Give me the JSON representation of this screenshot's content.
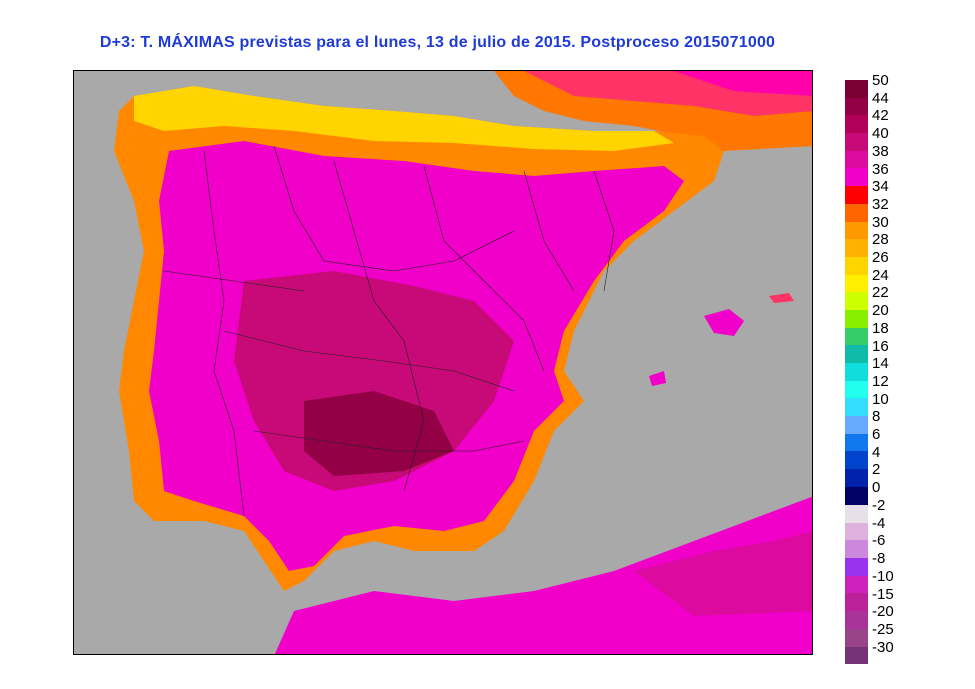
{
  "title": "D+3: T. MÁXIMAS previstas para el lunes, 13 de julio de 2015. Postproceso 2015071000",
  "legend_positive": [
    {
      "label": "50",
      "color": "#7a0034"
    },
    {
      "label": "44",
      "color": "#930045"
    },
    {
      "label": "42",
      "color": "#b0005a"
    },
    {
      "label": "40",
      "color": "#c80a78"
    },
    {
      "label": "38",
      "color": "#dd0aa0"
    },
    {
      "label": "36",
      "color": "#f000c8"
    },
    {
      "label": "34",
      "color": "#ff0000"
    },
    {
      "label": "32",
      "color": "#ff6600"
    },
    {
      "label": "30",
      "color": "#ff9900"
    },
    {
      "label": "28",
      "color": "#ffb000"
    },
    {
      "label": "26",
      "color": "#ffd400"
    },
    {
      "label": "24",
      "color": "#ffee00"
    },
    {
      "label": "22",
      "color": "#ccff00"
    },
    {
      "label": "20",
      "color": "#88ee00"
    },
    {
      "label": "18",
      "color": "#33cc66"
    },
    {
      "label": "16",
      "color": "#11bbaa"
    },
    {
      "label": "14",
      "color": "#11dddd"
    },
    {
      "label": "12",
      "color": "#22ffee"
    },
    {
      "label": "10",
      "color": "#33ddff"
    },
    {
      "label": "8",
      "color": "#66aaff"
    },
    {
      "label": "6",
      "color": "#1177ee"
    },
    {
      "label": "4",
      "color": "#0044cc"
    },
    {
      "label": "2",
      "color": "#0022aa"
    },
    {
      "label": "0",
      "color": "#000066"
    }
  ],
  "legend_negative": [
    {
      "label": "-2",
      "color": "#e8e0e8"
    },
    {
      "label": "-4",
      "color": "#ddb0dd"
    },
    {
      "label": "-6",
      "color": "#cc88dd"
    },
    {
      "label": "-8",
      "color": "#9933ee"
    },
    {
      "label": "-10",
      "color": "#cc22bb"
    },
    {
      "label": "-15",
      "color": "#bb2299"
    },
    {
      "label": "-20",
      "color": "#aa3399"
    },
    {
      "label": "-25",
      "color": "#994488"
    },
    {
      "label": "-30",
      "color": "#773377"
    }
  ]
}
